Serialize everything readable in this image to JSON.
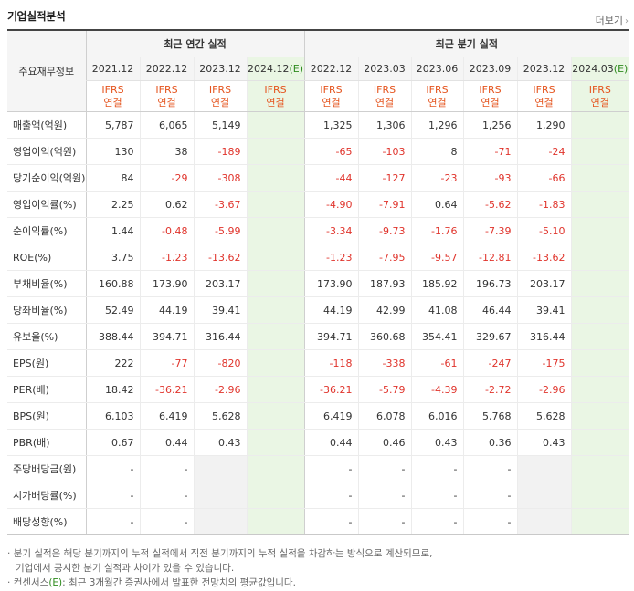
{
  "header": {
    "title": "기업실적분석",
    "more_label": "더보기"
  },
  "table": {
    "row_header_label": "주요재무정보",
    "groups": {
      "annual": "최근 연간 실적",
      "quarterly": "최근 분기 실적"
    },
    "periods": [
      {
        "label": "2021.12",
        "est": false
      },
      {
        "label": "2022.12",
        "est": false
      },
      {
        "label": "2023.12",
        "est": false
      },
      {
        "label": "2024.12",
        "est": true,
        "est_mark": "(E)"
      },
      {
        "label": "2022.12",
        "est": false
      },
      {
        "label": "2023.03",
        "est": false
      },
      {
        "label": "2023.06",
        "est": false
      },
      {
        "label": "2023.09",
        "est": false
      },
      {
        "label": "2023.12",
        "est": false
      },
      {
        "label": "2024.03",
        "est": true,
        "est_mark": "(E)"
      }
    ],
    "ifrs_line1": "IFRS",
    "ifrs_line2": "연결",
    "rows": [
      {
        "label": "매출액(억원)",
        "values": [
          "5,787",
          "6,065",
          "5,149",
          "",
          "1,325",
          "1,306",
          "1,296",
          "1,256",
          "1,290",
          ""
        ]
      },
      {
        "label": "영업이익(억원)",
        "values": [
          "130",
          "38",
          "-189",
          "",
          "-65",
          "-103",
          "8",
          "-71",
          "-24",
          ""
        ]
      },
      {
        "label": "당기순이익(억원)",
        "values": [
          "84",
          "-29",
          "-308",
          "",
          "-44",
          "-127",
          "-23",
          "-93",
          "-66",
          ""
        ]
      },
      {
        "label": "영업이익률(%)",
        "values": [
          "2.25",
          "0.62",
          "-3.67",
          "",
          "-4.90",
          "-7.91",
          "0.64",
          "-5.62",
          "-1.83",
          ""
        ]
      },
      {
        "label": "순이익률(%)",
        "values": [
          "1.44",
          "-0.48",
          "-5.99",
          "",
          "-3.34",
          "-9.73",
          "-1.76",
          "-7.39",
          "-5.10",
          ""
        ]
      },
      {
        "label": "ROE(%)",
        "values": [
          "3.75",
          "-1.23",
          "-13.62",
          "",
          "-1.23",
          "-7.95",
          "-9.57",
          "-12.81",
          "-13.62",
          ""
        ]
      },
      {
        "label": "부채비율(%)",
        "values": [
          "160.88",
          "173.90",
          "203.17",
          "",
          "173.90",
          "187.93",
          "185.92",
          "196.73",
          "203.17",
          ""
        ]
      },
      {
        "label": "당좌비율(%)",
        "values": [
          "52.49",
          "44.19",
          "39.41",
          "",
          "44.19",
          "42.99",
          "41.08",
          "46.44",
          "39.41",
          ""
        ]
      },
      {
        "label": "유보율(%)",
        "values": [
          "388.44",
          "394.71",
          "316.44",
          "",
          "394.71",
          "360.68",
          "354.41",
          "329.67",
          "316.44",
          ""
        ]
      },
      {
        "label": "EPS(원)",
        "values": [
          "222",
          "-77",
          "-820",
          "",
          "-118",
          "-338",
          "-61",
          "-247",
          "-175",
          ""
        ]
      },
      {
        "label": "PER(배)",
        "values": [
          "18.42",
          "-36.21",
          "-2.96",
          "",
          "-36.21",
          "-5.79",
          "-4.39",
          "-2.72",
          "-2.96",
          ""
        ]
      },
      {
        "label": "BPS(원)",
        "values": [
          "6,103",
          "6,419",
          "5,628",
          "",
          "6,419",
          "6,078",
          "6,016",
          "5,768",
          "5,628",
          ""
        ]
      },
      {
        "label": "PBR(배)",
        "values": [
          "0.67",
          "0.44",
          "0.43",
          "",
          "0.44",
          "0.46",
          "0.43",
          "0.36",
          "0.43",
          ""
        ]
      },
      {
        "label": "주당배당금(원)",
        "values": [
          "-",
          "-",
          "",
          "",
          "-",
          "-",
          "-",
          "-",
          "",
          ""
        ]
      },
      {
        "label": "시가배당률(%)",
        "values": [
          "-",
          "-",
          "",
          "",
          "-",
          "-",
          "-",
          "-",
          "",
          ""
        ]
      },
      {
        "label": "배당성향(%)",
        "values": [
          "-",
          "-",
          "",
          "",
          "-",
          "-",
          "-",
          "-",
          "",
          ""
        ]
      }
    ]
  },
  "notes": {
    "line1": "분기 실적은 해당 분기까지의 누적 실적에서 직전 분기까지의 누적 실적을 차감하는 방식으로 계산되므로,",
    "line2": "기업에서 공시한 분기 실적과 차이가 있을 수 있습니다.",
    "line3_prefix": "컨센서스",
    "line3_mark": "(E)",
    "line3_suffix": ": 최근 3개월간 증권사에서 발표한 전망치의 평균값입니다."
  },
  "colors": {
    "negative": "#e0342c",
    "ifrs": "#e5551f",
    "estimate_bg": "#eaf6e4",
    "estimate_mark": "#2e8b1e"
  }
}
